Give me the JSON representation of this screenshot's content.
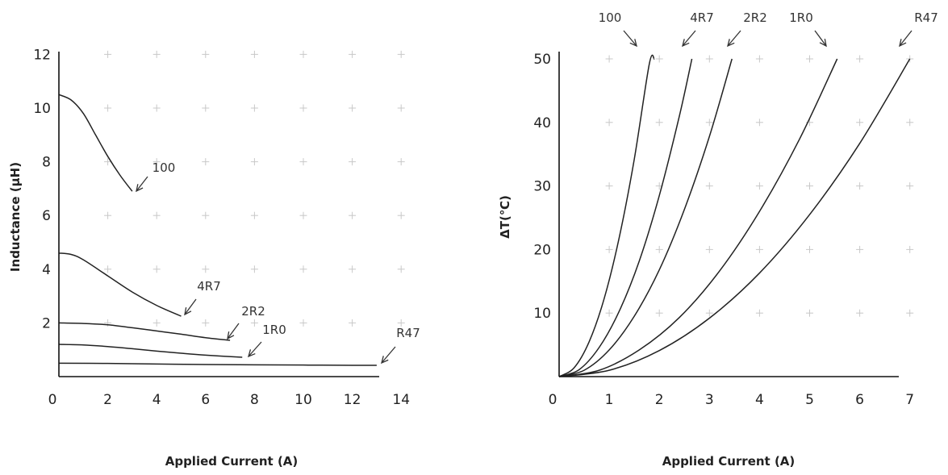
{
  "chart_data": [
    {
      "type": "line",
      "xlabel": "Applied Current (A)",
      "ylabel": "Inductance (μH)",
      "xlim": [
        0,
        14
      ],
      "ylim": [
        0,
        12
      ],
      "x_ticks": [
        "0",
        "2",
        "4",
        "6",
        "8",
        "10",
        "12",
        "14"
      ],
      "y_ticks": [
        "2",
        "4",
        "6",
        "8",
        "10",
        "12"
      ],
      "grid": "plus-markers",
      "series": [
        {
          "name": "100",
          "x": [
            0,
            0.5,
            1.0,
            1.5,
            2.0,
            2.5,
            3.0
          ],
          "y": [
            10.5,
            10.3,
            9.8,
            9.0,
            8.2,
            7.5,
            6.9
          ]
        },
        {
          "name": "4R7",
          "x": [
            0,
            0.5,
            1.0,
            2.0,
            3.0,
            4.0,
            5.0
          ],
          "y": [
            4.6,
            4.55,
            4.35,
            3.75,
            3.15,
            2.65,
            2.25
          ]
        },
        {
          "name": "2R2",
          "x": [
            0,
            1.0,
            2.0,
            3.0,
            4.0,
            5.0,
            6.0,
            7.0
          ],
          "y": [
            2.0,
            1.98,
            1.93,
            1.82,
            1.7,
            1.58,
            1.45,
            1.35
          ]
        },
        {
          "name": "1R0",
          "x": [
            0,
            1.0,
            2.0,
            3.0,
            4.0,
            5.0,
            6.0,
            7.5
          ],
          "y": [
            1.2,
            1.18,
            1.12,
            1.04,
            0.95,
            0.87,
            0.8,
            0.72
          ]
        },
        {
          "name": "R47",
          "x": [
            0,
            2.0,
            4.0,
            6.0,
            8.0,
            10.0,
            12.0,
            13.0
          ],
          "y": [
            0.5,
            0.49,
            0.47,
            0.45,
            0.44,
            0.43,
            0.42,
            0.42
          ]
        }
      ]
    },
    {
      "type": "line",
      "xlabel": "Applied Current (A)",
      "ylabel": "ΔT(℃)",
      "xlim": [
        0,
        7
      ],
      "ylim": [
        0,
        50
      ],
      "x_ticks": [
        "0",
        "1",
        "2",
        "3",
        "4",
        "5",
        "6",
        "7"
      ],
      "y_ticks": [
        "10",
        "20",
        "30",
        "40",
        "50"
      ],
      "grid": "plus-markers",
      "series": [
        {
          "name": "100",
          "x": [
            0,
            0.3,
            0.6,
            0.9,
            1.2,
            1.5,
            1.8,
            1.9
          ],
          "y": [
            0,
            1.4,
            5.5,
            12.3,
            21.9,
            34.2,
            49.2,
            50
          ]
        },
        {
          "name": "4R7",
          "x": [
            0,
            0.4,
            0.8,
            1.2,
            1.6,
            2.0,
            2.4,
            2.65
          ],
          "y": [
            0,
            1.1,
            4.6,
            10.3,
            18.2,
            28.5,
            41.0,
            50
          ]
        },
        {
          "name": "2R2",
          "x": [
            0,
            0.5,
            1.0,
            1.5,
            2.0,
            2.5,
            3.0,
            3.45
          ],
          "y": [
            0,
            1.0,
            4.2,
            9.5,
            16.8,
            26.3,
            37.8,
            50
          ]
        },
        {
          "name": "1R0",
          "x": [
            0,
            0.8,
            1.6,
            2.4,
            3.2,
            4.0,
            4.8,
            5.55
          ],
          "y": [
            0,
            1.0,
            4.2,
            9.3,
            16.6,
            26.0,
            37.4,
            50
          ]
        },
        {
          "name": "R47",
          "x": [
            0,
            1.0,
            2.0,
            3.0,
            4.0,
            5.0,
            6.0,
            7.0
          ],
          "y": [
            0,
            1.0,
            4.1,
            9.2,
            16.3,
            25.5,
            36.7,
            50
          ]
        }
      ]
    }
  ]
}
